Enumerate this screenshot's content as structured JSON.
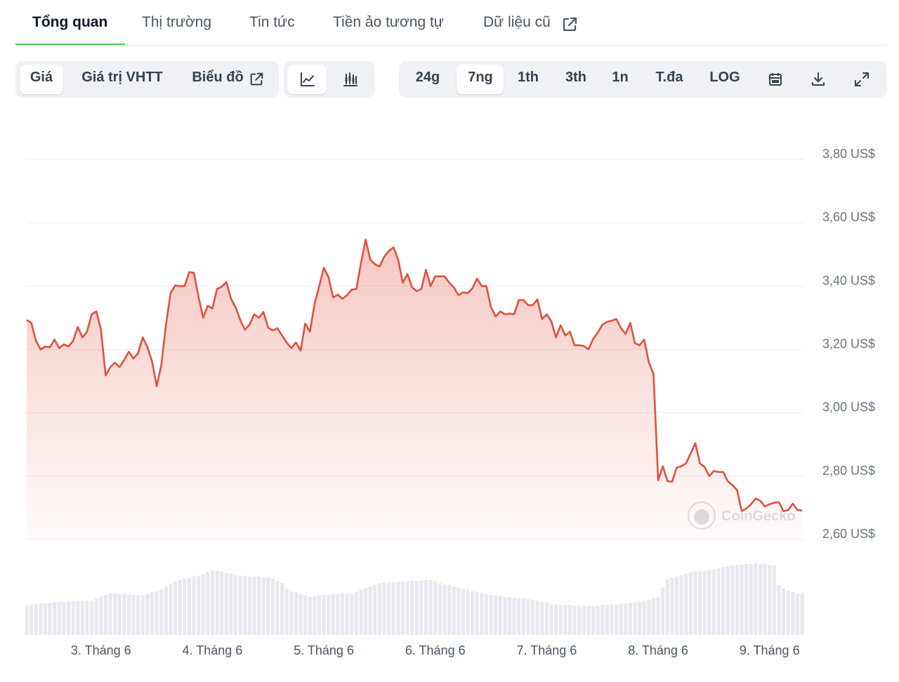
{
  "tabs": [
    "Tổng quan",
    "Thị trường",
    "Tin tức",
    "Tiền ảo tương tự",
    "Dữ liệu cũ"
  ],
  "toolbar": {
    "chart_modes": [
      "Giá",
      "Giá trị VHTT",
      "Biểu đồ"
    ],
    "ranges": [
      "24g",
      "7ng",
      "1th",
      "3th",
      "1n",
      "T.đa",
      "LOG"
    ]
  },
  "chart_data": {
    "type": "line",
    "watermark": "CoinGecko",
    "color": "#e0513f",
    "xlim": [
      0,
      167
    ],
    "xticks": [
      {
        "value": 16,
        "label": "3. Tháng 6"
      },
      {
        "value": 40,
        "label": "4. Tháng 6"
      },
      {
        "value": 64,
        "label": "5. Tháng 6"
      },
      {
        "value": 88,
        "label": "6. Tháng 6"
      },
      {
        "value": 112,
        "label": "7. Tháng 6"
      },
      {
        "value": 136,
        "label": "8. Tháng 6"
      },
      {
        "value": 160,
        "label": "9. Tháng 6"
      }
    ],
    "ylim": [
      2.6,
      3.8
    ],
    "yticks": [
      {
        "value": 3.8,
        "label": "3,80 US$"
      },
      {
        "value": 3.6,
        "label": "3,60 US$"
      },
      {
        "value": 3.4,
        "label": "3,40 US$"
      },
      {
        "value": 3.2,
        "label": "3,20 US$"
      },
      {
        "value": 3.0,
        "label": "3,00 US$"
      },
      {
        "value": 2.8,
        "label": "2,80 US$"
      },
      {
        "value": 2.6,
        "label": "2,60 US$"
      }
    ],
    "grid": true,
    "values": [
      3.293,
      3.284,
      3.227,
      3.2,
      3.209,
      3.207,
      3.231,
      3.204,
      3.216,
      3.209,
      3.227,
      3.271,
      3.238,
      3.256,
      3.311,
      3.32,
      3.262,
      3.118,
      3.144,
      3.158,
      3.144,
      3.167,
      3.193,
      3.171,
      3.189,
      3.238,
      3.207,
      3.162,
      3.084,
      3.151,
      3.278,
      3.378,
      3.402,
      3.4,
      3.4,
      3.444,
      3.442,
      3.367,
      3.3,
      3.338,
      3.329,
      3.391,
      3.398,
      3.413,
      3.36,
      3.333,
      3.293,
      3.262,
      3.278,
      3.311,
      3.3,
      3.318,
      3.269,
      3.26,
      3.267,
      3.244,
      3.222,
      3.204,
      3.222,
      3.196,
      3.282,
      3.256,
      3.344,
      3.4,
      3.458,
      3.429,
      3.364,
      3.373,
      3.36,
      3.371,
      3.389,
      3.391,
      3.473,
      3.547,
      3.484,
      3.469,
      3.462,
      3.493,
      3.511,
      3.522,
      3.484,
      3.411,
      3.438,
      3.396,
      3.384,
      3.391,
      3.451,
      3.4,
      3.431,
      3.431,
      3.431,
      3.411,
      3.396,
      3.371,
      3.38,
      3.378,
      3.393,
      3.424,
      3.4,
      3.4,
      3.333,
      3.304,
      3.32,
      3.311,
      3.313,
      3.311,
      3.356,
      3.356,
      3.34,
      3.34,
      3.358,
      3.296,
      3.311,
      3.289,
      3.238,
      3.276,
      3.244,
      3.256,
      3.213,
      3.213,
      3.211,
      3.2,
      3.233,
      3.253,
      3.278,
      3.287,
      3.291,
      3.296,
      3.267,
      3.249,
      3.284,
      3.22,
      3.213,
      3.231,
      3.16,
      3.122,
      2.787,
      2.831,
      2.784,
      2.782,
      2.827,
      2.831,
      2.84,
      2.871,
      2.904,
      2.84,
      2.829,
      2.8,
      2.816,
      2.813,
      2.813,
      2.784,
      2.771,
      2.756,
      2.689,
      2.698,
      2.711,
      2.729,
      2.722,
      2.704,
      2.711,
      2.716,
      2.718,
      2.689,
      2.693,
      2.713,
      2.693,
      2.691
    ],
    "volume": {
      "color": "#e8e9ee",
      "ylim": [
        0,
        100
      ],
      "values": [
        40,
        41,
        42,
        43,
        43,
        44,
        45,
        45,
        45,
        46,
        46,
        46,
        47,
        47,
        47,
        50,
        52,
        55,
        57,
        57,
        56,
        56,
        55,
        55,
        54,
        54,
        56,
        58,
        60,
        62,
        66,
        70,
        73,
        75,
        77,
        78,
        80,
        81,
        83,
        86,
        88,
        88,
        87,
        85,
        84,
        82,
        81,
        81,
        80,
        80,
        80,
        79,
        79,
        77,
        74,
        71,
        63,
        60,
        58,
        56,
        54,
        52,
        53,
        54,
        55,
        55,
        56,
        56,
        57,
        57,
        57,
        59,
        62,
        64,
        66,
        68,
        71,
        72,
        72,
        72,
        73,
        73,
        73,
        74,
        74,
        75,
        75,
        75,
        73,
        71,
        69,
        68,
        66,
        65,
        63,
        62,
        60,
        59,
        57,
        56,
        55,
        54,
        53,
        52,
        52,
        51,
        50,
        50,
        49,
        48,
        46,
        45,
        44,
        42,
        42,
        41,
        41,
        41,
        40,
        40,
        40,
        40,
        40,
        40,
        41,
        41,
        42,
        42,
        43,
        43,
        44,
        44,
        45,
        46,
        48,
        50,
        52,
        65,
        76,
        78,
        80,
        82,
        84,
        86,
        87,
        87,
        88,
        89,
        90,
        91,
        93,
        94,
        95,
        96,
        96,
        97,
        97,
        98,
        97,
        97,
        96,
        95,
        68,
        64,
        61,
        59,
        57,
        58
      ]
    }
  }
}
